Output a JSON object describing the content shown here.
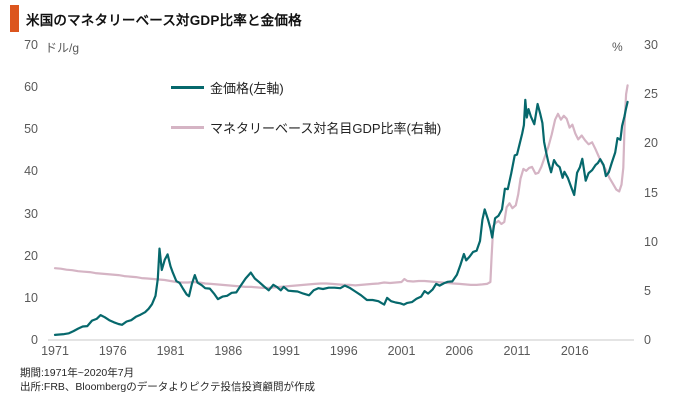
{
  "header": {
    "title": "米国のマネタリーベース対GDP比率と金価格",
    "accent_color": "#dc551e"
  },
  "footer": {
    "period": "期間:1971年~2020年7月",
    "source": "出所:FRB、Bloombergのデータよりピクテ投信投資顧問が作成"
  },
  "chart_data": {
    "type": "line",
    "title": "米国のマネタリーベース対GDP比率と金価格",
    "grid": false,
    "legend_position": "top-left-inside",
    "x_range": [
      1971,
      2020.6
    ],
    "x_ticks": [
      1971,
      1976,
      1981,
      1986,
      1991,
      1996,
      2001,
      2006,
      2011,
      2016
    ],
    "left_axis": {
      "unit": "ドル/g",
      "range": [
        0,
        70
      ],
      "ticks": [
        0,
        10,
        20,
        30,
        40,
        50,
        60,
        70
      ]
    },
    "right_axis": {
      "unit": "%",
      "range": [
        0,
        30
      ],
      "ticks": [
        0,
        5,
        10,
        15,
        20,
        25,
        30
      ]
    },
    "axis_line_color": "#c9c9c9",
    "series": [
      {
        "name": "金価格(左軸)",
        "axis": "left",
        "color": "#06686c",
        "points": [
          [
            1971.0,
            1.2
          ],
          [
            1971.4,
            1.3
          ],
          [
            1971.8,
            1.4
          ],
          [
            1972.2,
            1.6
          ],
          [
            1972.6,
            2.1
          ],
          [
            1973.0,
            2.7
          ],
          [
            1973.4,
            3.2
          ],
          [
            1973.8,
            3.3
          ],
          [
            1974.2,
            4.6
          ],
          [
            1974.6,
            5.0
          ],
          [
            1974.95,
            5.9
          ],
          [
            1975.3,
            5.4
          ],
          [
            1975.7,
            4.7
          ],
          [
            1976.1,
            4.2
          ],
          [
            1976.5,
            3.8
          ],
          [
            1976.8,
            3.6
          ],
          [
            1977.2,
            4.4
          ],
          [
            1977.6,
            4.7
          ],
          [
            1978.0,
            5.5
          ],
          [
            1978.4,
            6.0
          ],
          [
            1978.8,
            6.6
          ],
          [
            1979.1,
            7.4
          ],
          [
            1979.4,
            8.5
          ],
          [
            1979.7,
            10.5
          ],
          [
            1979.9,
            14.5
          ],
          [
            1980.05,
            21.7
          ],
          [
            1980.25,
            16.6
          ],
          [
            1980.5,
            19.0
          ],
          [
            1980.75,
            20.3
          ],
          [
            1981.0,
            17.5
          ],
          [
            1981.2,
            16.0
          ],
          [
            1981.5,
            14.0
          ],
          [
            1981.8,
            13.5
          ],
          [
            1982.1,
            12.1
          ],
          [
            1982.4,
            10.8
          ],
          [
            1982.6,
            10.4
          ],
          [
            1982.85,
            13.3
          ],
          [
            1983.1,
            15.4
          ],
          [
            1983.35,
            13.6
          ],
          [
            1983.7,
            13.0
          ],
          [
            1984.0,
            12.3
          ],
          [
            1984.4,
            12.2
          ],
          [
            1984.8,
            10.9
          ],
          [
            1985.1,
            9.7
          ],
          [
            1985.5,
            10.3
          ],
          [
            1985.9,
            10.5
          ],
          [
            1986.3,
            11.2
          ],
          [
            1986.7,
            11.3
          ],
          [
            1987.1,
            13.0
          ],
          [
            1987.5,
            14.6
          ],
          [
            1987.95,
            16.0
          ],
          [
            1988.3,
            14.6
          ],
          [
            1988.7,
            13.7
          ],
          [
            1989.1,
            12.7
          ],
          [
            1989.5,
            11.8
          ],
          [
            1989.9,
            13.1
          ],
          [
            1990.2,
            12.6
          ],
          [
            1990.55,
            11.8
          ],
          [
            1990.8,
            12.6
          ],
          [
            1991.2,
            11.7
          ],
          [
            1991.6,
            11.6
          ],
          [
            1992.0,
            11.5
          ],
          [
            1992.5,
            11.0
          ],
          [
            1993.0,
            10.6
          ],
          [
            1993.4,
            11.8
          ],
          [
            1993.8,
            12.3
          ],
          [
            1994.2,
            12.1
          ],
          [
            1994.7,
            12.4
          ],
          [
            1995.2,
            12.4
          ],
          [
            1995.7,
            12.3
          ],
          [
            1996.1,
            12.9
          ],
          [
            1996.5,
            12.4
          ],
          [
            1997.0,
            11.5
          ],
          [
            1997.5,
            10.6
          ],
          [
            1998.0,
            9.5
          ],
          [
            1998.5,
            9.5
          ],
          [
            1999.0,
            9.2
          ],
          [
            1999.5,
            8.4
          ],
          [
            1999.75,
            10.0
          ],
          [
            2000.1,
            9.2
          ],
          [
            2000.5,
            8.9
          ],
          [
            2000.9,
            8.7
          ],
          [
            2001.2,
            8.4
          ],
          [
            2001.5,
            8.8
          ],
          [
            2001.9,
            9.0
          ],
          [
            2002.3,
            9.8
          ],
          [
            2002.7,
            10.3
          ],
          [
            2003.0,
            11.6
          ],
          [
            2003.3,
            11.0
          ],
          [
            2003.7,
            12.0
          ],
          [
            2004.0,
            13.3
          ],
          [
            2004.3,
            12.9
          ],
          [
            2004.7,
            13.5
          ],
          [
            2005.0,
            13.8
          ],
          [
            2005.4,
            13.9
          ],
          [
            2005.8,
            15.5
          ],
          [
            2006.1,
            17.8
          ],
          [
            2006.4,
            20.4
          ],
          [
            2006.6,
            18.9
          ],
          [
            2006.9,
            19.8
          ],
          [
            2007.2,
            20.9
          ],
          [
            2007.5,
            21.2
          ],
          [
            2007.8,
            23.5
          ],
          [
            2008.0,
            28.5
          ],
          [
            2008.2,
            31.0
          ],
          [
            2008.5,
            28.5
          ],
          [
            2008.7,
            26.5
          ],
          [
            2008.85,
            24.3
          ],
          [
            2009.1,
            28.9
          ],
          [
            2009.4,
            29.5
          ],
          [
            2009.7,
            31.0
          ],
          [
            2009.95,
            35.9
          ],
          [
            2010.2,
            35.8
          ],
          [
            2010.5,
            39.5
          ],
          [
            2010.8,
            43.8
          ],
          [
            2011.0,
            44.0
          ],
          [
            2011.2,
            46.2
          ],
          [
            2011.45,
            49.0
          ],
          [
            2011.6,
            51.0
          ],
          [
            2011.72,
            57.0
          ],
          [
            2011.85,
            52.8
          ],
          [
            2012.0,
            54.8
          ],
          [
            2012.2,
            53.0
          ],
          [
            2012.5,
            51.2
          ],
          [
            2012.78,
            56.0
          ],
          [
            2013.0,
            53.8
          ],
          [
            2013.2,
            51.5
          ],
          [
            2013.35,
            47.0
          ],
          [
            2013.5,
            44.8
          ],
          [
            2013.7,
            42.3
          ],
          [
            2013.95,
            39.8
          ],
          [
            2014.2,
            42.7
          ],
          [
            2014.45,
            41.6
          ],
          [
            2014.7,
            41.0
          ],
          [
            2014.95,
            38.5
          ],
          [
            2015.1,
            39.9
          ],
          [
            2015.4,
            38.5
          ],
          [
            2015.7,
            36.2
          ],
          [
            2015.95,
            34.4
          ],
          [
            2016.2,
            39.7
          ],
          [
            2016.45,
            41.0
          ],
          [
            2016.65,
            43.0
          ],
          [
            2016.95,
            37.8
          ],
          [
            2017.2,
            39.6
          ],
          [
            2017.5,
            40.3
          ],
          [
            2017.8,
            41.5
          ],
          [
            2018.0,
            42.0
          ],
          [
            2018.2,
            42.9
          ],
          [
            2018.5,
            41.5
          ],
          [
            2018.7,
            38.9
          ],
          [
            2018.95,
            39.8
          ],
          [
            2019.2,
            42.0
          ],
          [
            2019.5,
            44.5
          ],
          [
            2019.7,
            47.9
          ],
          [
            2019.95,
            47.5
          ],
          [
            2020.1,
            50.8
          ],
          [
            2020.3,
            53.0
          ],
          [
            2020.45,
            55.0
          ],
          [
            2020.58,
            56.5
          ]
        ]
      },
      {
        "name": "マネタリーベース対名目GDP比率(右軸)",
        "axis": "right",
        "color": "#d5b4c4",
        "points": [
          [
            1971.0,
            7.3
          ],
          [
            1971.5,
            7.25
          ],
          [
            1972.0,
            7.15
          ],
          [
            1972.5,
            7.1
          ],
          [
            1973.0,
            7.0
          ],
          [
            1973.5,
            6.95
          ],
          [
            1974.0,
            6.9
          ],
          [
            1974.5,
            6.8
          ],
          [
            1975.0,
            6.75
          ],
          [
            1975.5,
            6.7
          ],
          [
            1976.0,
            6.65
          ],
          [
            1976.5,
            6.6
          ],
          [
            1977.0,
            6.5
          ],
          [
            1977.5,
            6.45
          ],
          [
            1978.0,
            6.4
          ],
          [
            1978.5,
            6.3
          ],
          [
            1979.0,
            6.25
          ],
          [
            1979.5,
            6.2
          ],
          [
            1980.0,
            6.15
          ],
          [
            1980.5,
            6.1
          ],
          [
            1981.0,
            6.0
          ],
          [
            1981.5,
            5.9
          ],
          [
            1982.0,
            5.85
          ],
          [
            1982.5,
            5.85
          ],
          [
            1983.0,
            5.9
          ],
          [
            1983.5,
            5.85
          ],
          [
            1984.0,
            5.75
          ],
          [
            1984.5,
            5.7
          ],
          [
            1985.0,
            5.65
          ],
          [
            1985.5,
            5.6
          ],
          [
            1986.0,
            5.55
          ],
          [
            1986.5,
            5.5
          ],
          [
            1987.0,
            5.45
          ],
          [
            1987.5,
            5.4
          ],
          [
            1988.0,
            5.4
          ],
          [
            1988.5,
            5.35
          ],
          [
            1989.0,
            5.3
          ],
          [
            1989.5,
            5.3
          ],
          [
            1990.0,
            5.35
          ],
          [
            1990.5,
            5.4
          ],
          [
            1991.0,
            5.45
          ],
          [
            1991.5,
            5.5
          ],
          [
            1992.0,
            5.55
          ],
          [
            1992.5,
            5.6
          ],
          [
            1993.0,
            5.65
          ],
          [
            1993.5,
            5.7
          ],
          [
            1994.0,
            5.75
          ],
          [
            1994.5,
            5.75
          ],
          [
            1995.0,
            5.7
          ],
          [
            1995.5,
            5.65
          ],
          [
            1996.0,
            5.6
          ],
          [
            1996.5,
            5.6
          ],
          [
            1997.0,
            5.55
          ],
          [
            1997.5,
            5.6
          ],
          [
            1998.0,
            5.65
          ],
          [
            1998.5,
            5.7
          ],
          [
            1999.0,
            5.75
          ],
          [
            1999.5,
            5.85
          ],
          [
            2000.0,
            5.8
          ],
          [
            2000.5,
            5.85
          ],
          [
            2001.0,
            5.9
          ],
          [
            2001.25,
            6.2
          ],
          [
            2001.5,
            6.0
          ],
          [
            2002.0,
            5.95
          ],
          [
            2002.5,
            6.0
          ],
          [
            2003.0,
            6.0
          ],
          [
            2003.5,
            5.95
          ],
          [
            2004.0,
            5.9
          ],
          [
            2004.5,
            5.85
          ],
          [
            2005.0,
            5.8
          ],
          [
            2005.5,
            5.75
          ],
          [
            2006.0,
            5.7
          ],
          [
            2006.5,
            5.65
          ],
          [
            2007.0,
            5.6
          ],
          [
            2007.5,
            5.6
          ],
          [
            2008.0,
            5.65
          ],
          [
            2008.4,
            5.7
          ],
          [
            2008.7,
            5.9
          ],
          [
            2008.8,
            8.5
          ],
          [
            2008.95,
            11.6
          ],
          [
            2009.15,
            11.9
          ],
          [
            2009.4,
            12.1
          ],
          [
            2009.65,
            11.8
          ],
          [
            2009.9,
            12.0
          ],
          [
            2010.1,
            13.5
          ],
          [
            2010.35,
            13.9
          ],
          [
            2010.6,
            13.4
          ],
          [
            2010.9,
            13.7
          ],
          [
            2011.1,
            14.8
          ],
          [
            2011.3,
            16.4
          ],
          [
            2011.55,
            17.4
          ],
          [
            2011.8,
            17.2
          ],
          [
            2012.05,
            17.5
          ],
          [
            2012.3,
            17.6
          ],
          [
            2012.6,
            16.9
          ],
          [
            2012.85,
            17.0
          ],
          [
            2013.1,
            17.6
          ],
          [
            2013.4,
            18.6
          ],
          [
            2013.7,
            19.6
          ],
          [
            2014.0,
            20.9
          ],
          [
            2014.3,
            22.4
          ],
          [
            2014.55,
            23.0
          ],
          [
            2014.8,
            22.4
          ],
          [
            2015.05,
            22.8
          ],
          [
            2015.3,
            22.5
          ],
          [
            2015.55,
            21.6
          ],
          [
            2015.8,
            21.9
          ],
          [
            2016.05,
            21.0
          ],
          [
            2016.3,
            20.4
          ],
          [
            2016.6,
            20.8
          ],
          [
            2016.9,
            20.3
          ],
          [
            2017.2,
            19.9
          ],
          [
            2017.5,
            20.1
          ],
          [
            2017.8,
            19.4
          ],
          [
            2018.1,
            18.6
          ],
          [
            2018.4,
            17.9
          ],
          [
            2018.7,
            17.3
          ],
          [
            2019.0,
            16.5
          ],
          [
            2019.3,
            15.9
          ],
          [
            2019.6,
            15.3
          ],
          [
            2019.85,
            15.1
          ],
          [
            2020.05,
            15.8
          ],
          [
            2020.2,
            17.5
          ],
          [
            2020.33,
            22.5
          ],
          [
            2020.45,
            25.0
          ],
          [
            2020.58,
            25.9
          ]
        ]
      }
    ]
  }
}
